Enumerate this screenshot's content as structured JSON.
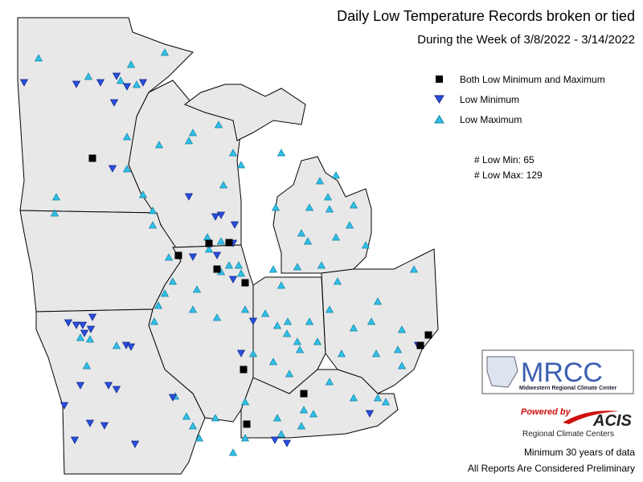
{
  "header": {
    "title": "Daily Low Temperature Records broken or tied",
    "subtitle": "During the Week of 3/8/2022 - 3/14/2022"
  },
  "legend": [
    "Both Low Minimum and Maximum",
    "Low Minimum",
    "Low Maximum"
  ],
  "stats": [
    "# Low Min: 65",
    "# Low Max: 129"
  ],
  "logos": {
    "mrcc": "MRCC",
    "mrcc_name": "Midwestern Regional Climate Center",
    "powered": "Powered by",
    "acis": "ACIS",
    "acis_name": "Regional Climate Centers"
  },
  "footer": [
    "Minimum 30 years of data",
    "All Reports Are Considered Preliminary"
  ]
}
